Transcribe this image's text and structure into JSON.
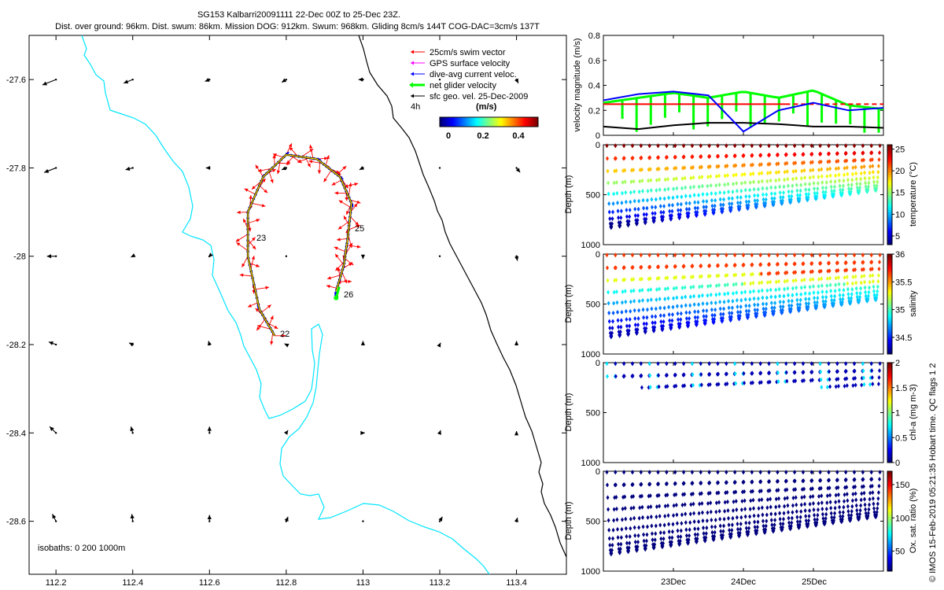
{
  "header": {
    "line1": "SG153 Kalbarri20091111 22-Dec 00Z to 25-Dec 23Z.",
    "line2": "Dist. over ground: 96km. Dist. swum: 86km. Mission DOG: 912km. Swum: 968km. Gliding 8cm/s 144T COG-DAC=3cm/s 137T"
  },
  "legend": {
    "items": [
      {
        "label": "25cm/s swim vector",
        "color": "#ff0000"
      },
      {
        "label": "GPS surface velocity",
        "color": "#ff00ff"
      },
      {
        "label": "dive-avg current veloc.",
        "color": "#0000ff"
      },
      {
        "label": "net glider velocity",
        "color": "#00ff00"
      },
      {
        "label": "sfc geo. vel. 25-Dec-2009",
        "color": "#000000"
      }
    ],
    "interval": "4h",
    "colorbar_title": "(m/s)",
    "colorbar_ticks": [
      "0",
      "0.2",
      "0.4"
    ]
  },
  "map": {
    "x_ticks": [
      "112.2",
      "112.4",
      "112.6",
      "112.8",
      "113",
      "113.2",
      "113.4"
    ],
    "y_ticks": [
      "-27.6",
      "-27.8",
      "-28",
      "-28.2",
      "-28.4",
      "-28.6"
    ],
    "isobath_note": "isobaths: 0   200  1000m",
    "day_labels": [
      "22",
      "23",
      "25",
      "26"
    ]
  },
  "panels": {
    "velocity_ylabel": "velocity magnitude (m/s)",
    "depth_ylabel": "Depth (m)",
    "vel_yticks": [
      "0",
      "0.2",
      "0.4",
      "0.6",
      "0.8"
    ],
    "depth_yticks": [
      "0",
      "500",
      "1000"
    ],
    "x_ticks": [
      "23Dec",
      "24Dec",
      "25Dec"
    ],
    "temp_label": "temperature (°C)",
    "temp_ticks": [
      "5",
      "10",
      "15",
      "20",
      "25"
    ],
    "sal_label": "salinity",
    "sal_ticks": [
      "34.5",
      "35",
      "35.5",
      "36"
    ],
    "chl_label": "chl-a (mg m-3)",
    "chl_ticks": [
      "0",
      "0.5",
      "1",
      "1.5",
      "2"
    ],
    "oxy_label": "Ox. sat. ratio (%)",
    "oxy_ticks": [
      "50",
      "100",
      "150"
    ],
    "credit": "© IMOS 15-Feb-2019 05:21:35 Hobart time. QC flags 1  2"
  },
  "chart_data": [
    {
      "type": "scatter",
      "title": "SG153 Kalbarri20091111 22-Dec 00Z to 25-Dec 23Z.",
      "xlim": [
        112.13,
        113.53
      ],
      "ylim": [
        -28.72,
        -27.5
      ],
      "track": [
        [
          112.77,
          -28.18
        ],
        [
          112.73,
          -28.12
        ],
        [
          112.7,
          -28.0
        ],
        [
          112.7,
          -27.9
        ],
        [
          112.74,
          -27.82
        ],
        [
          112.8,
          -27.77
        ],
        [
          112.88,
          -27.78
        ],
        [
          112.94,
          -27.82
        ],
        [
          112.97,
          -27.88
        ],
        [
          112.96,
          -27.96
        ],
        [
          112.95,
          -28.02
        ],
        [
          112.93,
          -28.08
        ]
      ],
      "geo_arrows": [
        {
          "x": 112.2,
          "y": -27.6,
          "u": -0.15,
          "v": -0.06
        },
        {
          "x": 112.4,
          "y": -27.6,
          "u": -0.1,
          "v": -0.04
        },
        {
          "x": 112.6,
          "y": -27.6,
          "u": -0.05,
          "v": -0.02
        },
        {
          "x": 112.8,
          "y": -27.6,
          "u": -0.05,
          "v": -0.03
        },
        {
          "x": 113.0,
          "y": -27.6,
          "u": -0.05,
          "v": 0.0
        },
        {
          "x": 113.2,
          "y": -27.6,
          "u": 0.0,
          "v": 0.0
        },
        {
          "x": 113.4,
          "y": -27.6,
          "u": 0.02,
          "v": -0.04
        },
        {
          "x": 112.2,
          "y": -27.8,
          "u": -0.13,
          "v": -0.05
        },
        {
          "x": 112.4,
          "y": -27.8,
          "u": -0.08,
          "v": -0.02
        },
        {
          "x": 112.6,
          "y": -27.8,
          "u": -0.04,
          "v": 0.0
        },
        {
          "x": 112.8,
          "y": -27.8,
          "u": -0.05,
          "v": -0.02
        },
        {
          "x": 113.0,
          "y": -27.8,
          "u": -0.04,
          "v": -0.02
        },
        {
          "x": 113.2,
          "y": -27.8,
          "u": 0.0,
          "v": 0.0
        },
        {
          "x": 113.4,
          "y": -27.8,
          "u": 0.04,
          "v": -0.05
        },
        {
          "x": 112.2,
          "y": -28.0,
          "u": -0.1,
          "v": 0.0
        },
        {
          "x": 112.4,
          "y": -28.0,
          "u": -0.02,
          "v": -0.01
        },
        {
          "x": 112.6,
          "y": -28.0,
          "u": -0.01,
          "v": -0.01
        },
        {
          "x": 112.8,
          "y": -28.0,
          "u": 0.0,
          "v": 0.0
        },
        {
          "x": 113.0,
          "y": -28.0,
          "u": 0.0,
          "v": -0.03
        },
        {
          "x": 113.2,
          "y": -28.0,
          "u": 0.0,
          "v": 0.0
        },
        {
          "x": 113.4,
          "y": -28.0,
          "u": 0.01,
          "v": -0.05
        },
        {
          "x": 112.2,
          "y": -28.2,
          "u": -0.08,
          "v": 0.03
        },
        {
          "x": 112.4,
          "y": -28.2,
          "u": -0.04,
          "v": 0.02
        },
        {
          "x": 112.6,
          "y": -28.2,
          "u": -0.01,
          "v": 0.04
        },
        {
          "x": 112.8,
          "y": -28.2,
          "u": -0.02,
          "v": 0.01
        },
        {
          "x": 113.0,
          "y": -28.2,
          "u": 0.0,
          "v": 0.04
        },
        {
          "x": 113.2,
          "y": -28.2,
          "u": 0.01,
          "v": 0.02
        },
        {
          "x": 113.4,
          "y": -28.2,
          "u": 0.0,
          "v": 0.04
        },
        {
          "x": 112.2,
          "y": -28.4,
          "u": -0.07,
          "v": 0.07
        },
        {
          "x": 112.4,
          "y": -28.4,
          "u": -0.02,
          "v": 0.07
        },
        {
          "x": 112.6,
          "y": -28.4,
          "u": 0.0,
          "v": 0.07
        },
        {
          "x": 112.8,
          "y": -28.4,
          "u": 0.02,
          "v": 0.03
        },
        {
          "x": 113.0,
          "y": -28.4,
          "u": 0.02,
          "v": 0.0
        },
        {
          "x": 113.2,
          "y": -28.4,
          "u": 0.01,
          "v": 0.03
        },
        {
          "x": 113.4,
          "y": -28.4,
          "u": 0.0,
          "v": 0.02
        },
        {
          "x": 112.2,
          "y": -28.6,
          "u": -0.04,
          "v": 0.08
        },
        {
          "x": 112.4,
          "y": -28.6,
          "u": -0.01,
          "v": 0.08
        },
        {
          "x": 112.6,
          "y": -28.6,
          "u": 0.0,
          "v": 0.07
        },
        {
          "x": 112.8,
          "y": -28.6,
          "u": 0.02,
          "v": 0.05
        },
        {
          "x": 113.0,
          "y": -28.6,
          "u": 0.0,
          "v": 0.0
        },
        {
          "x": 113.2,
          "y": -28.6,
          "u": 0.03,
          "v": 0.05
        },
        {
          "x": 113.4,
          "y": -28.6,
          "u": 0.01,
          "v": 0.04
        }
      ]
    },
    {
      "type": "line",
      "ylabel": "velocity magnitude (m/s)",
      "ylim": [
        0,
        0.8
      ],
      "x_days": [
        0,
        0.5,
        1.0,
        1.5,
        2.0,
        2.5,
        3.0,
        3.5,
        4.0
      ],
      "series": [
        {
          "name": "dive-avg current veloc.",
          "values": [
            0.28,
            0.33,
            0.35,
            0.32,
            0.03,
            0.2,
            0.26,
            0.2,
            0.22
          ]
        },
        {
          "name": "net glider velocity",
          "values": [
            0.26,
            0.3,
            0.34,
            0.3,
            0.35,
            0.3,
            0.36,
            0.24,
            0.21
          ]
        },
        {
          "name": "25cm/s swim vector",
          "values": [
            0.25,
            0.25,
            0.25,
            0.25,
            0.25,
            0.25,
            0.25,
            0.25,
            0.25
          ]
        },
        {
          "name": "sfc geo. vel. 25-Dec-2009",
          "values": [
            0.07,
            0.05,
            0.08,
            0.1,
            0.1,
            0.09,
            0.07,
            0.07,
            0.06
          ]
        }
      ]
    },
    {
      "type": "scatter",
      "ylabel": "Depth (m)",
      "ylim": [
        1000,
        0
      ],
      "colorbar": "temperature (°C)",
      "clim": [
        3,
        26
      ],
      "dives": 32,
      "max_depth_start": 800,
      "max_depth_end": 430
    },
    {
      "type": "scatter",
      "ylabel": "Depth (m)",
      "ylim": [
        1000,
        0
      ],
      "colorbar": "salinity",
      "clim": [
        34.2,
        36.0
      ],
      "dives": 32,
      "max_depth_start": 800,
      "max_depth_end": 430
    },
    {
      "type": "scatter",
      "ylabel": "Depth (m)",
      "ylim": [
        1000,
        0
      ],
      "colorbar": "chl-a (mg m-3)",
      "clim": [
        0,
        2
      ]
    },
    {
      "type": "scatter",
      "ylabel": "Depth (m)",
      "ylim": [
        1000,
        0
      ],
      "colorbar": "Ox. sat. ratio (%)",
      "clim": [
        20,
        170
      ]
    }
  ]
}
